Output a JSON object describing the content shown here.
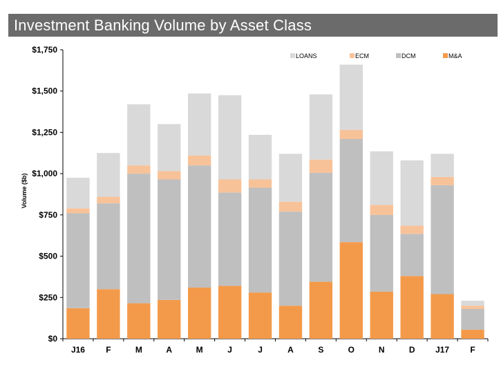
{
  "header": {
    "title": "Investment Banking Volume by Asset Class"
  },
  "chart_data": {
    "type": "bar",
    "stacked": true,
    "ylabel": "Volume ($b)",
    "ylim": [
      0,
      1750
    ],
    "yticks": [
      0,
      250,
      500,
      750,
      1000,
      1250,
      1500,
      1750
    ],
    "ytick_labels": [
      "$0",
      "$250",
      "$500",
      "$750",
      "$1,000",
      "$1,250",
      "$1,500",
      "$1,750"
    ],
    "grid": false,
    "legend_position": "top",
    "categories": [
      "J16",
      "F",
      "M",
      "A",
      "M",
      "J",
      "J",
      "A",
      "S",
      "O",
      "N",
      "D",
      "J17",
      "F"
    ],
    "series": [
      {
        "name": "M&A",
        "color": "#f39a4a",
        "values": [
          185,
          300,
          215,
          235,
          310,
          320,
          280,
          200,
          345,
          585,
          285,
          380,
          270,
          55
        ]
      },
      {
        "name": "DCM",
        "color": "#bfbfbf",
        "values": [
          575,
          520,
          785,
          730,
          740,
          565,
          635,
          570,
          660,
          625,
          465,
          255,
          660,
          125
        ]
      },
      {
        "name": "ECM",
        "color": "#f8c299",
        "values": [
          30,
          40,
          50,
          50,
          60,
          80,
          50,
          60,
          80,
          55,
          60,
          50,
          50,
          20
        ]
      },
      {
        "name": "LOANS",
        "color": "#d9d9d9",
        "values": [
          185,
          265,
          370,
          285,
          375,
          510,
          270,
          290,
          395,
          395,
          325,
          395,
          140,
          30
        ]
      }
    ],
    "legend_order": [
      "LOANS",
      "ECM",
      "DCM",
      "M&A"
    ]
  }
}
